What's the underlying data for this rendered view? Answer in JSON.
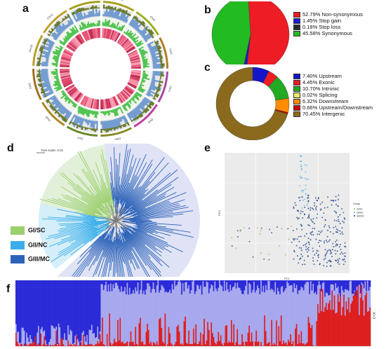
{
  "panels": {
    "a": "a",
    "b": "b",
    "c": "c",
    "d": "d",
    "e": "e",
    "f": "f"
  },
  "circos": {
    "chromosomes": [
      "Chr1",
      "Chr2",
      "Chr3",
      "Chr4",
      "Chr5",
      "Chr6",
      "Chr7",
      "Chr8",
      "Chr9",
      "Chr10",
      "Chr11",
      "Chr12"
    ]
  },
  "chart_data": [
    {
      "panel": "b",
      "type": "pie",
      "categories": [
        "Non-synonymous",
        "Stop gain",
        "Stop loss",
        "Synonymous"
      ],
      "values": [
        52.79,
        1.45,
        0.18,
        45.58
      ],
      "labels": [
        "52.79% Non-synonymous",
        "1.45% Stop gain",
        "0.18% Stop loss",
        "45.58% Synonymous"
      ],
      "colors": [
        "#ee1c24",
        "#1a1ad0",
        "#2a2a2a",
        "#22bb22"
      ]
    },
    {
      "panel": "c",
      "type": "pie",
      "donut": true,
      "categories": [
        "Upstream",
        "Exonic",
        "Intronic",
        "Splicing",
        "Downstream",
        "Upstream/Downstream",
        "Intergenic"
      ],
      "values": [
        7.4,
        4.45,
        10.7,
        0.02,
        6.32,
        0.66,
        70.45
      ],
      "labels": [
        "7.40% Upstream",
        "4.45% Exonic",
        "10.70% Intronic",
        "0.02% Splicing",
        "6.32% Downstream",
        "0.66% Upstream/Downstream",
        "70.45% Intergenic"
      ],
      "colors": [
        "#1515c8",
        "#ee1c24",
        "#22aa22",
        "#e8e86a",
        "#ff8c00",
        "#cc0000",
        "#8b6a1e"
      ]
    },
    {
      "panel": "d",
      "type": "tree",
      "scale_label": "Tree scale: 0.01",
      "groups": [
        "GI/SC",
        "GII/NC",
        "GIII/MC"
      ],
      "colors": [
        "#9ccf6e",
        "#39aee8",
        "#2c63b8"
      ]
    },
    {
      "panel": "e",
      "type": "scatter",
      "xlabel": "PC1",
      "ylabel": "PC2",
      "legend_title": "Group",
      "legend_entries": [
        "GI/SC",
        "GII/NC",
        "GIII/MC"
      ]
    },
    {
      "panel": "f",
      "type": "bar",
      "stacked": true,
      "ylabel": "K=3",
      "series_colors": [
        "#2b2bd8",
        "#a8a8ee",
        "#dd1f1f"
      ]
    }
  ]
}
